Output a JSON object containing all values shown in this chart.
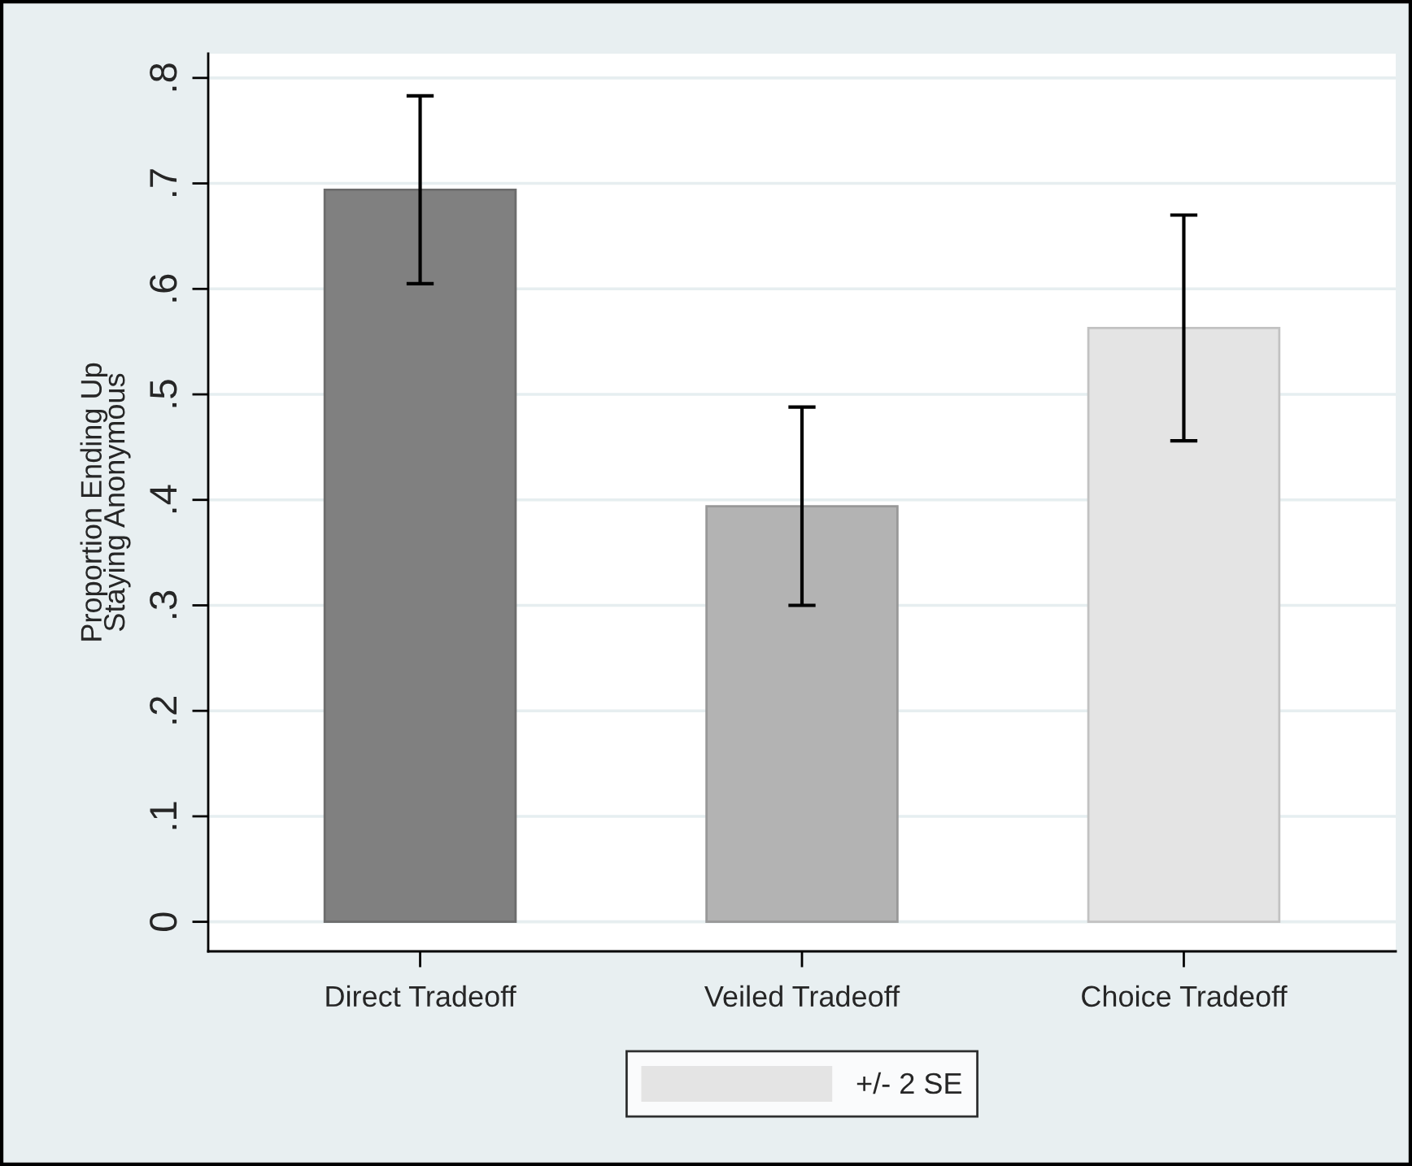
{
  "chart_data": {
    "type": "bar",
    "ylabel": "Proportion Ending Up\nStaying Anonymous",
    "categories": [
      "Direct Tradeoff",
      "Veiled Tradeoff",
      "Choice Tradeoff"
    ],
    "series": [
      {
        "name": "+/- 2 SE",
        "color": "#e4e4e4",
        "colors": [
          "#808080",
          "#b3b3b3",
          "#e4e4e4"
        ],
        "values": [
          0.694,
          0.394,
          0.563
        ],
        "errors": [
          0.089,
          0.094,
          0.107
        ]
      }
    ],
    "ylim": [
      -0.028,
      0.823
    ],
    "yticks": [
      {
        "value": 0,
        "label": "0"
      },
      {
        "value": 0.1,
        "label": ".1"
      },
      {
        "value": 0.2,
        "label": ".2"
      },
      {
        "value": 0.3,
        "label": ".3"
      },
      {
        "value": 0.4,
        "label": ".4"
      },
      {
        "value": 0.5,
        "label": ".5"
      },
      {
        "value": 0.6,
        "label": ".6"
      },
      {
        "value": 0.7,
        "label": ".7"
      },
      {
        "value": 0.8,
        "label": ".8"
      }
    ],
    "grid": "y",
    "legend": "bottom"
  }
}
